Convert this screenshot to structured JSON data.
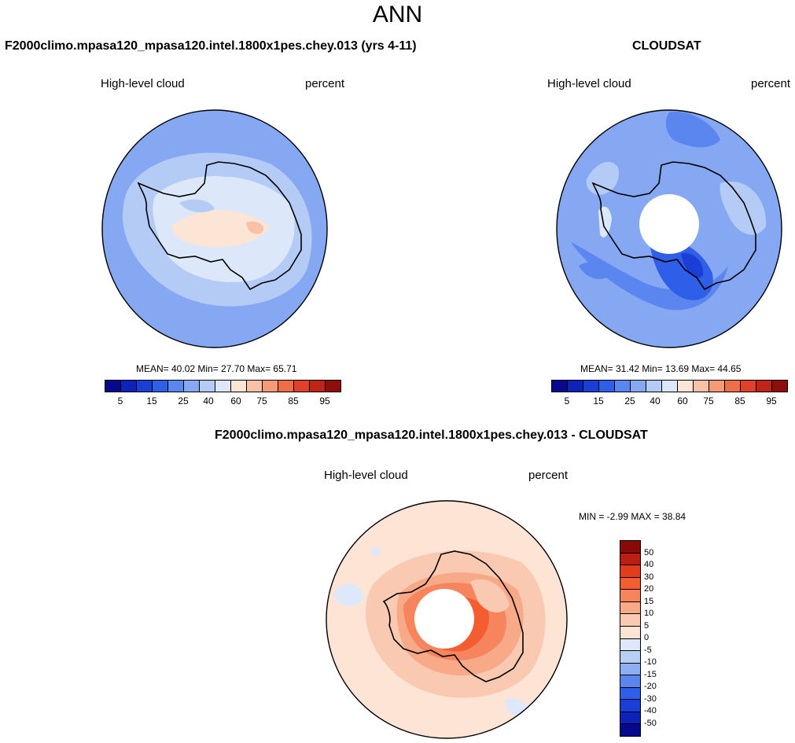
{
  "figure": {
    "main_title": "ANN",
    "panel_a_title": "F2000climo.mpasa120_mpasa120.intel.1800x1pes.chey.013 (yrs 4-11)",
    "panel_b_title": "CLOUDSAT",
    "panel_c_title": "F2000climo.mpasa120_mpasa120.intel.1800x1pes.chey.013 - CLOUDSAT",
    "variable": "High-level cloud",
    "units": "percent"
  },
  "colors": {
    "abs_scale": [
      "#08088c",
      "#0c22b8",
      "#1a3ed6",
      "#2f5ee8",
      "#5b86f0",
      "#86a8f3",
      "#b4cbf5",
      "#dce8fa",
      "#fde5d6",
      "#f9c2a6",
      "#f49a76",
      "#ef6e48",
      "#e1402a",
      "#bf2516",
      "#8e0e0c"
    ],
    "diff_scale": [
      "#8a0a0a",
      "#bb1f13",
      "#e23c1f",
      "#f35d2f",
      "#f6845c",
      "#f8a987",
      "#fac9b1",
      "#fde4d5",
      "#dde9fa",
      "#b8cff5",
      "#8eaef2",
      "#5b86ee",
      "#2f5ee8",
      "#1a3ed6",
      "#0c22b8",
      "#08088c"
    ],
    "land_outline": "#000000"
  },
  "chart_data": [
    {
      "type": "heatmap",
      "projection": "south polar stereographic",
      "title": "F2000climo.mpasa120_mpasa120.intel.1800x1pes.chey.013 (yrs 4-11)",
      "left_label": "High-level cloud",
      "right_label": "percent",
      "stats": {
        "mean": "40.02",
        "min": "27.70",
        "max": "65.71"
      },
      "stats_text": "MEAN=  40.02  Min=  27.70  Max=  65.71",
      "colorbar_ticks": [
        "5",
        "15",
        "25",
        "40",
        "60",
        "75",
        "85",
        "95"
      ]
    },
    {
      "type": "heatmap",
      "projection": "south polar stereographic",
      "title": "CLOUDSAT",
      "left_label": "High-level cloud",
      "right_label": "percent",
      "stats": {
        "mean": "31.42",
        "min": "13.69",
        "max": "44.65"
      },
      "stats_text": "MEAN=  31.42  Min=  13.69  Max=  44.65",
      "colorbar_ticks": [
        "5",
        "15",
        "25",
        "40",
        "60",
        "75",
        "85",
        "95"
      ],
      "missing_data": "polar gap near the pole (white circle)"
    },
    {
      "type": "heatmap",
      "projection": "south polar stereographic",
      "title": "F2000climo.mpasa120_mpasa120.intel.1800x1pes.chey.013 - CLOUDSAT",
      "left_label": "High-level cloud",
      "right_label": "percent",
      "stats": {
        "min": "-2.99",
        "max": "38.84"
      },
      "stats_text": "MIN =  -2.99 MAX =  38.84",
      "colorbar_ticks": [
        "50",
        "40",
        "30",
        "20",
        "15",
        "10",
        "5",
        "0",
        "-5",
        "-10",
        "-15",
        "-20",
        "-30",
        "-40",
        "-50"
      ],
      "missing_data": "polar gap near the pole (white circle)"
    }
  ]
}
